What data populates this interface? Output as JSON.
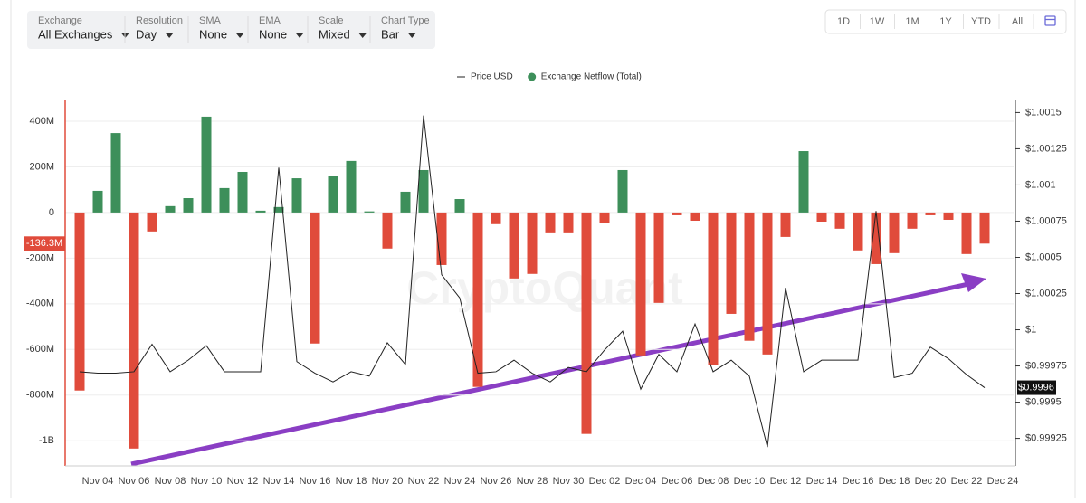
{
  "toolbar": {
    "filters": [
      {
        "label": "Exchange",
        "value": "All Exchanges"
      },
      {
        "label": "Resolution",
        "value": "Day"
      },
      {
        "label": "SMA",
        "value": "None"
      },
      {
        "label": "EMA",
        "value": "None"
      },
      {
        "label": "Scale",
        "value": "Mixed"
      },
      {
        "label": "Chart Type",
        "value": "Bar"
      }
    ],
    "ranges": [
      "1D",
      "1W",
      "1M",
      "1Y",
      "YTD",
      "All"
    ]
  },
  "chart_data": {
    "type": "bar",
    "watermark": "CryptoQuant",
    "categories": [
      null,
      "Nov 04",
      null,
      "Nov 06",
      null,
      "Nov 08",
      null,
      "Nov 10",
      null,
      "Nov 12",
      null,
      "Nov 14",
      null,
      "Nov 16",
      null,
      "Nov 18",
      null,
      "Nov 20",
      null,
      "Nov 22",
      null,
      "Nov 24",
      null,
      "Nov 26",
      null,
      "Nov 28",
      null,
      "Nov 30",
      null,
      "Dec 02",
      null,
      "Dec 04",
      null,
      "Dec 06",
      null,
      "Dec 08",
      null,
      "Dec 10",
      null,
      "Dec 12",
      null,
      "Dec 14",
      null,
      "Dec 16",
      null,
      "Dec 18",
      null,
      "Dec 20",
      null,
      "Dec 22",
      null,
      "Dec 24"
    ],
    "series": [
      {
        "name": "Price USD",
        "type": "line",
        "axis": "y2",
        "color": "#222222",
        "latest_label": "$0.9996",
        "values": [
          0.99971,
          0.9997,
          0.9997,
          0.99971,
          0.9999,
          0.99971,
          0.99979,
          0.99989,
          0.99971,
          0.99971,
          0.99971,
          1.00112,
          0.99978,
          0.9997,
          0.99964,
          0.99971,
          0.99968,
          0.99991,
          0.99976,
          1.00148,
          1.00038,
          1.00022,
          0.9997,
          0.99971,
          0.99979,
          0.9997,
          0.99964,
          0.99974,
          0.99971,
          0.99986,
          0.99999,
          0.99959,
          0.99983,
          0.99971,
          1.00004,
          0.99971,
          0.99979,
          0.99968,
          0.99919,
          1.00029,
          0.99971,
          0.99979,
          0.99979,
          0.99979,
          1.00082,
          0.99967,
          0.9997,
          0.99988,
          0.9998,
          0.99969,
          0.9996,
          null
        ]
      },
      {
        "name": "Exchange Netflow (Total)",
        "type": "bar",
        "color": "#3d8f5a",
        "negative_color": "#e04b3b",
        "latest_label": "-136.3M",
        "values": [
          -780000000,
          95000000,
          348000000,
          -1034000000,
          -83000000,
          28000000,
          63000000,
          420000000,
          107000000,
          178000000,
          8000000,
          24000000,
          150000000,
          -574000000,
          162000000,
          226000000,
          5000000,
          -158000000,
          91000000,
          186000000,
          -230000000,
          59000000,
          -764000000,
          -51000000,
          -289000000,
          -269000000,
          -87000000,
          -87000000,
          -970000000,
          -44000000,
          186000000,
          -626000000,
          -396000000,
          -12000000,
          -36000000,
          -669000000,
          -444000000,
          -562000000,
          -622000000,
          -107000000,
          269000000,
          -40000000,
          -71000000,
          -166000000,
          -226000000,
          -178000000,
          -71000000,
          -12000000,
          -32000000,
          -182000000,
          -136300000,
          null
        ]
      }
    ],
    "ylim": [
      -1110000000,
      495000000
    ],
    "yticks": [
      {
        "value": -1000000000,
        "label": "-1B"
      },
      {
        "value": -800000000,
        "label": "-800M"
      },
      {
        "value": -600000000,
        "label": "-600M"
      },
      {
        "value": -400000000,
        "label": "-400M"
      },
      {
        "value": -200000000,
        "label": "-200M"
      },
      0,
      {
        "value": 200000000,
        "label": "200M"
      },
      {
        "value": 400000000,
        "label": "400M"
      }
    ],
    "y2lim": [
      0.99906,
      1.00159
    ],
    "y2ticks": [
      {
        "value": 0.99925,
        "label": "$0.99925"
      },
      {
        "value": 0.9995,
        "label": "$0.9995"
      },
      {
        "value": 0.99975,
        "label": "$0.99975"
      },
      {
        "value": 1,
        "label": "$1"
      },
      {
        "value": 1.00025,
        "label": "$1.00025"
      },
      {
        "value": 1.0005,
        "label": "$1.0005"
      },
      {
        "value": 1.00075,
        "label": "$1.00075"
      },
      {
        "value": 1.001,
        "label": "$1.001"
      },
      {
        "value": 1.00125,
        "label": "$1.00125"
      },
      {
        "value": 1.0015,
        "label": "$1.0015"
      }
    ],
    "grid": true,
    "legend": "top"
  }
}
